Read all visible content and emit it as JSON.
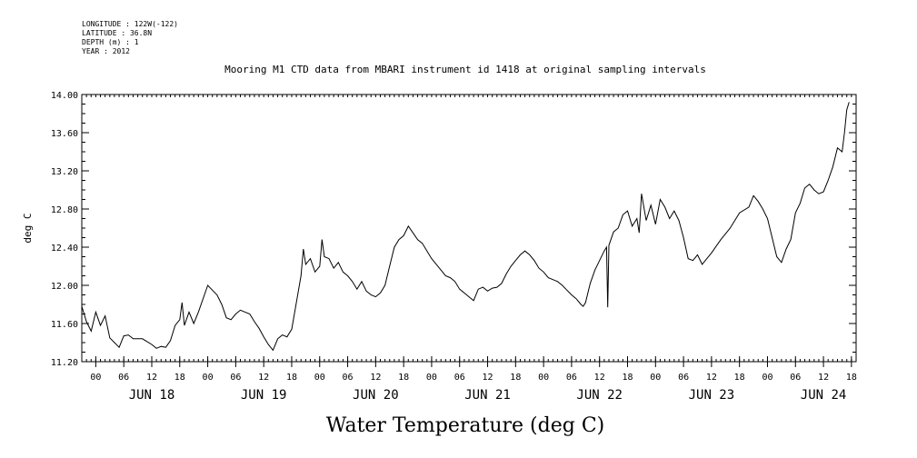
{
  "meta": {
    "longitude": "LONGITUDE : 122W(-122)",
    "latitude": "LATITUDE : 36.8N",
    "depth": "DEPTH (m) : 1",
    "year": "YEAR : 2012"
  },
  "chart_data": {
    "type": "line",
    "title": "Mooring M1 CTD data from MBARI instrument id 1418 at original sampling intervals",
    "xlabel": "Water Temperature (deg C)",
    "ylabel": "deg C",
    "ylim": [
      11.2,
      14.0
    ],
    "xlim": [
      "2012-06-17T21:00",
      "2012-06-24T19:00"
    ],
    "y_ticks": [
      "11.20",
      "11.60",
      "12.00",
      "12.40",
      "12.80",
      "13.20",
      "13.60",
      "14.00"
    ],
    "hour_ticks": [
      {
        "time": "2012-06-18T00:00",
        "label": "00"
      },
      {
        "time": "2012-06-18T06:00",
        "label": "06"
      },
      {
        "time": "2012-06-18T12:00",
        "label": "12"
      },
      {
        "time": "2012-06-18T18:00",
        "label": "18"
      },
      {
        "time": "2012-06-19T00:00",
        "label": "00"
      },
      {
        "time": "2012-06-19T06:00",
        "label": "06"
      },
      {
        "time": "2012-06-19T12:00",
        "label": "12"
      },
      {
        "time": "2012-06-19T18:00",
        "label": "18"
      },
      {
        "time": "2012-06-20T00:00",
        "label": "00"
      },
      {
        "time": "2012-06-20T06:00",
        "label": "06"
      },
      {
        "time": "2012-06-20T12:00",
        "label": "12"
      },
      {
        "time": "2012-06-20T18:00",
        "label": "18"
      },
      {
        "time": "2012-06-21T00:00",
        "label": "00"
      },
      {
        "time": "2012-06-21T06:00",
        "label": "06"
      },
      {
        "time": "2012-06-21T12:00",
        "label": "12"
      },
      {
        "time": "2012-06-21T18:00",
        "label": "18"
      },
      {
        "time": "2012-06-22T00:00",
        "label": "00"
      },
      {
        "time": "2012-06-22T06:00",
        "label": "06"
      },
      {
        "time": "2012-06-22T12:00",
        "label": "12"
      },
      {
        "time": "2012-06-22T18:00",
        "label": "18"
      },
      {
        "time": "2012-06-23T00:00",
        "label": "00"
      },
      {
        "time": "2012-06-23T06:00",
        "label": "06"
      },
      {
        "time": "2012-06-23T12:00",
        "label": "12"
      },
      {
        "time": "2012-06-23T18:00",
        "label": "18"
      },
      {
        "time": "2012-06-24T00:00",
        "label": "00"
      },
      {
        "time": "2012-06-24T06:00",
        "label": "06"
      },
      {
        "time": "2012-06-24T12:00",
        "label": "12"
      },
      {
        "time": "2012-06-24T18:00",
        "label": "18"
      }
    ],
    "day_labels": [
      {
        "time": "2012-06-18T12:00",
        "label": "JUN 18"
      },
      {
        "time": "2012-06-19T12:00",
        "label": "JUN 19"
      },
      {
        "time": "2012-06-20T12:00",
        "label": "JUN 20"
      },
      {
        "time": "2012-06-21T12:00",
        "label": "JUN 21"
      },
      {
        "time": "2012-06-22T12:00",
        "label": "JUN 22"
      },
      {
        "time": "2012-06-23T12:00",
        "label": "JUN 23"
      },
      {
        "time": "2012-06-24T12:00",
        "label": "JUN 24"
      }
    ],
    "grid": false,
    "series": [
      {
        "color": "#000000",
        "points": [
          [
            "2012-06-17T21:00",
            11.78
          ],
          [
            "2012-06-17T22:00",
            11.62
          ],
          [
            "2012-06-17T23:00",
            11.52
          ],
          [
            "2012-06-18T00:00",
            11.72
          ],
          [
            "2012-06-18T01:00",
            11.58
          ],
          [
            "2012-06-18T02:00",
            11.68
          ],
          [
            "2012-06-18T03:00",
            11.45
          ],
          [
            "2012-06-18T04:00",
            11.4
          ],
          [
            "2012-06-18T05:00",
            11.35
          ],
          [
            "2012-06-18T06:00",
            11.47
          ],
          [
            "2012-06-18T07:00",
            11.48
          ],
          [
            "2012-06-18T08:00",
            11.44
          ],
          [
            "2012-06-18T10:00",
            11.44
          ],
          [
            "2012-06-18T12:00",
            11.38
          ],
          [
            "2012-06-18T13:00",
            11.34
          ],
          [
            "2012-06-18T14:00",
            11.36
          ],
          [
            "2012-06-18T15:00",
            11.35
          ],
          [
            "2012-06-18T16:00",
            11.42
          ],
          [
            "2012-06-18T17:00",
            11.58
          ],
          [
            "2012-06-18T18:00",
            11.64
          ],
          [
            "2012-06-18T18:30",
            11.82
          ],
          [
            "2012-06-18T19:00",
            11.58
          ],
          [
            "2012-06-18T20:00",
            11.72
          ],
          [
            "2012-06-18T21:00",
            11.6
          ],
          [
            "2012-06-18T22:00",
            11.72
          ],
          [
            "2012-06-19T00:00",
            12.0
          ],
          [
            "2012-06-19T01:00",
            11.95
          ],
          [
            "2012-06-19T02:00",
            11.9
          ],
          [
            "2012-06-19T03:00",
            11.8
          ],
          [
            "2012-06-19T04:00",
            11.66
          ],
          [
            "2012-06-19T05:00",
            11.64
          ],
          [
            "2012-06-19T06:00",
            11.7
          ],
          [
            "2012-06-19T07:00",
            11.74
          ],
          [
            "2012-06-19T08:00",
            11.72
          ],
          [
            "2012-06-19T09:00",
            11.7
          ],
          [
            "2012-06-19T10:00",
            11.62
          ],
          [
            "2012-06-19T11:00",
            11.55
          ],
          [
            "2012-06-19T12:00",
            11.46
          ],
          [
            "2012-06-19T13:00",
            11.38
          ],
          [
            "2012-06-19T14:00",
            11.32
          ],
          [
            "2012-06-19T15:00",
            11.44
          ],
          [
            "2012-06-19T16:00",
            11.48
          ],
          [
            "2012-06-19T17:00",
            11.46
          ],
          [
            "2012-06-19T18:00",
            11.54
          ],
          [
            "2012-06-19T19:00",
            11.82
          ],
          [
            "2012-06-19T20:00",
            12.1
          ],
          [
            "2012-06-19T20:30",
            12.38
          ],
          [
            "2012-06-19T21:00",
            12.22
          ],
          [
            "2012-06-19T22:00",
            12.28
          ],
          [
            "2012-06-19T23:00",
            12.14
          ],
          [
            "2012-06-20T00:00",
            12.2
          ],
          [
            "2012-06-20T00:30",
            12.48
          ],
          [
            "2012-06-20T01:00",
            12.3
          ],
          [
            "2012-06-20T02:00",
            12.28
          ],
          [
            "2012-06-20T03:00",
            12.18
          ],
          [
            "2012-06-20T04:00",
            12.24
          ],
          [
            "2012-06-20T05:00",
            12.14
          ],
          [
            "2012-06-20T06:00",
            12.1
          ],
          [
            "2012-06-20T07:00",
            12.04
          ],
          [
            "2012-06-20T08:00",
            11.96
          ],
          [
            "2012-06-20T09:00",
            12.04
          ],
          [
            "2012-06-20T10:00",
            11.94
          ],
          [
            "2012-06-20T11:00",
            11.9
          ],
          [
            "2012-06-20T12:00",
            11.88
          ],
          [
            "2012-06-20T13:00",
            11.92
          ],
          [
            "2012-06-20T14:00",
            12.0
          ],
          [
            "2012-06-20T15:00",
            12.2
          ],
          [
            "2012-06-20T16:00",
            12.4
          ],
          [
            "2012-06-20T17:00",
            12.48
          ],
          [
            "2012-06-20T18:00",
            12.52
          ],
          [
            "2012-06-20T19:00",
            12.62
          ],
          [
            "2012-06-20T20:00",
            12.55
          ],
          [
            "2012-06-20T21:00",
            12.48
          ],
          [
            "2012-06-20T22:00",
            12.44
          ],
          [
            "2012-06-20T23:00",
            12.36
          ],
          [
            "2012-06-21T00:00",
            12.28
          ],
          [
            "2012-06-21T01:00",
            12.22
          ],
          [
            "2012-06-21T02:00",
            12.16
          ],
          [
            "2012-06-21T03:00",
            12.1
          ],
          [
            "2012-06-21T04:00",
            12.08
          ],
          [
            "2012-06-21T05:00",
            12.04
          ],
          [
            "2012-06-21T06:00",
            11.96
          ],
          [
            "2012-06-21T07:00",
            11.92
          ],
          [
            "2012-06-21T08:00",
            11.88
          ],
          [
            "2012-06-21T09:00",
            11.84
          ],
          [
            "2012-06-21T10:00",
            11.96
          ],
          [
            "2012-06-21T11:00",
            11.98
          ],
          [
            "2012-06-21T12:00",
            11.94
          ],
          [
            "2012-06-21T13:00",
            11.97
          ],
          [
            "2012-06-21T14:00",
            11.98
          ],
          [
            "2012-06-21T15:00",
            12.02
          ],
          [
            "2012-06-21T16:00",
            12.12
          ],
          [
            "2012-06-21T17:00",
            12.2
          ],
          [
            "2012-06-21T18:00",
            12.26
          ],
          [
            "2012-06-21T19:00",
            12.32
          ],
          [
            "2012-06-21T20:00",
            12.36
          ],
          [
            "2012-06-21T21:00",
            12.32
          ],
          [
            "2012-06-21T22:00",
            12.26
          ],
          [
            "2012-06-21T23:00",
            12.18
          ],
          [
            "2012-06-22T00:00",
            12.14
          ],
          [
            "2012-06-22T01:00",
            12.08
          ],
          [
            "2012-06-22T02:00",
            12.06
          ],
          [
            "2012-06-22T03:00",
            12.04
          ],
          [
            "2012-06-22T04:00",
            12.0
          ],
          [
            "2012-06-22T05:00",
            11.95
          ],
          [
            "2012-06-22T06:00",
            11.9
          ],
          [
            "2012-06-22T07:00",
            11.86
          ],
          [
            "2012-06-22T08:00",
            11.8
          ],
          [
            "2012-06-22T08:30",
            11.78
          ],
          [
            "2012-06-22T09:00",
            11.82
          ],
          [
            "2012-06-22T10:00",
            12.02
          ],
          [
            "2012-06-22T11:00",
            12.16
          ],
          [
            "2012-06-22T12:00",
            12.26
          ],
          [
            "2012-06-22T13:00",
            12.36
          ],
          [
            "2012-06-22T13:30",
            12.4
          ],
          [
            "2012-06-22T13:45",
            11.77
          ],
          [
            "2012-06-22T14:00",
            12.42
          ],
          [
            "2012-06-22T15:00",
            12.56
          ],
          [
            "2012-06-22T16:00",
            12.6
          ],
          [
            "2012-06-22T17:00",
            12.74
          ],
          [
            "2012-06-22T18:00",
            12.78
          ],
          [
            "2012-06-22T19:00",
            12.62
          ],
          [
            "2012-06-22T20:00",
            12.7
          ],
          [
            "2012-06-22T20:30",
            12.55
          ],
          [
            "2012-06-22T21:00",
            12.96
          ],
          [
            "2012-06-22T22:00",
            12.68
          ],
          [
            "2012-06-22T23:00",
            12.84
          ],
          [
            "2012-06-23T00:00",
            12.64
          ],
          [
            "2012-06-23T01:00",
            12.9
          ],
          [
            "2012-06-23T02:00",
            12.82
          ],
          [
            "2012-06-23T03:00",
            12.7
          ],
          [
            "2012-06-23T04:00",
            12.78
          ],
          [
            "2012-06-23T05:00",
            12.68
          ],
          [
            "2012-06-23T06:00",
            12.5
          ],
          [
            "2012-06-23T07:00",
            12.28
          ],
          [
            "2012-06-23T08:00",
            12.26
          ],
          [
            "2012-06-23T09:00",
            12.32
          ],
          [
            "2012-06-23T10:00",
            12.22
          ],
          [
            "2012-06-23T11:00",
            12.28
          ],
          [
            "2012-06-23T12:00",
            12.34
          ],
          [
            "2012-06-23T14:00",
            12.48
          ],
          [
            "2012-06-23T16:00",
            12.6
          ],
          [
            "2012-06-23T18:00",
            12.76
          ],
          [
            "2012-06-23T20:00",
            12.82
          ],
          [
            "2012-06-23T21:00",
            12.94
          ],
          [
            "2012-06-23T22:00",
            12.88
          ],
          [
            "2012-06-23T23:00",
            12.8
          ],
          [
            "2012-06-24T00:00",
            12.7
          ],
          [
            "2012-06-24T01:00",
            12.5
          ],
          [
            "2012-06-24T02:00",
            12.3
          ],
          [
            "2012-06-24T03:00",
            12.24
          ],
          [
            "2012-06-24T04:00",
            12.38
          ],
          [
            "2012-06-24T05:00",
            12.48
          ],
          [
            "2012-06-24T06:00",
            12.76
          ],
          [
            "2012-06-24T07:00",
            12.86
          ],
          [
            "2012-06-24T08:00",
            13.02
          ],
          [
            "2012-06-24T09:00",
            13.06
          ],
          [
            "2012-06-24T10:00",
            13.0
          ],
          [
            "2012-06-24T11:00",
            12.96
          ],
          [
            "2012-06-24T12:00",
            12.98
          ],
          [
            "2012-06-24T13:00",
            13.1
          ],
          [
            "2012-06-24T14:00",
            13.24
          ],
          [
            "2012-06-24T15:00",
            13.44
          ],
          [
            "2012-06-24T16:00",
            13.4
          ],
          [
            "2012-06-24T16:30",
            13.6
          ],
          [
            "2012-06-24T17:00",
            13.84
          ],
          [
            "2012-06-24T17:30",
            13.92
          ]
        ]
      }
    ]
  }
}
